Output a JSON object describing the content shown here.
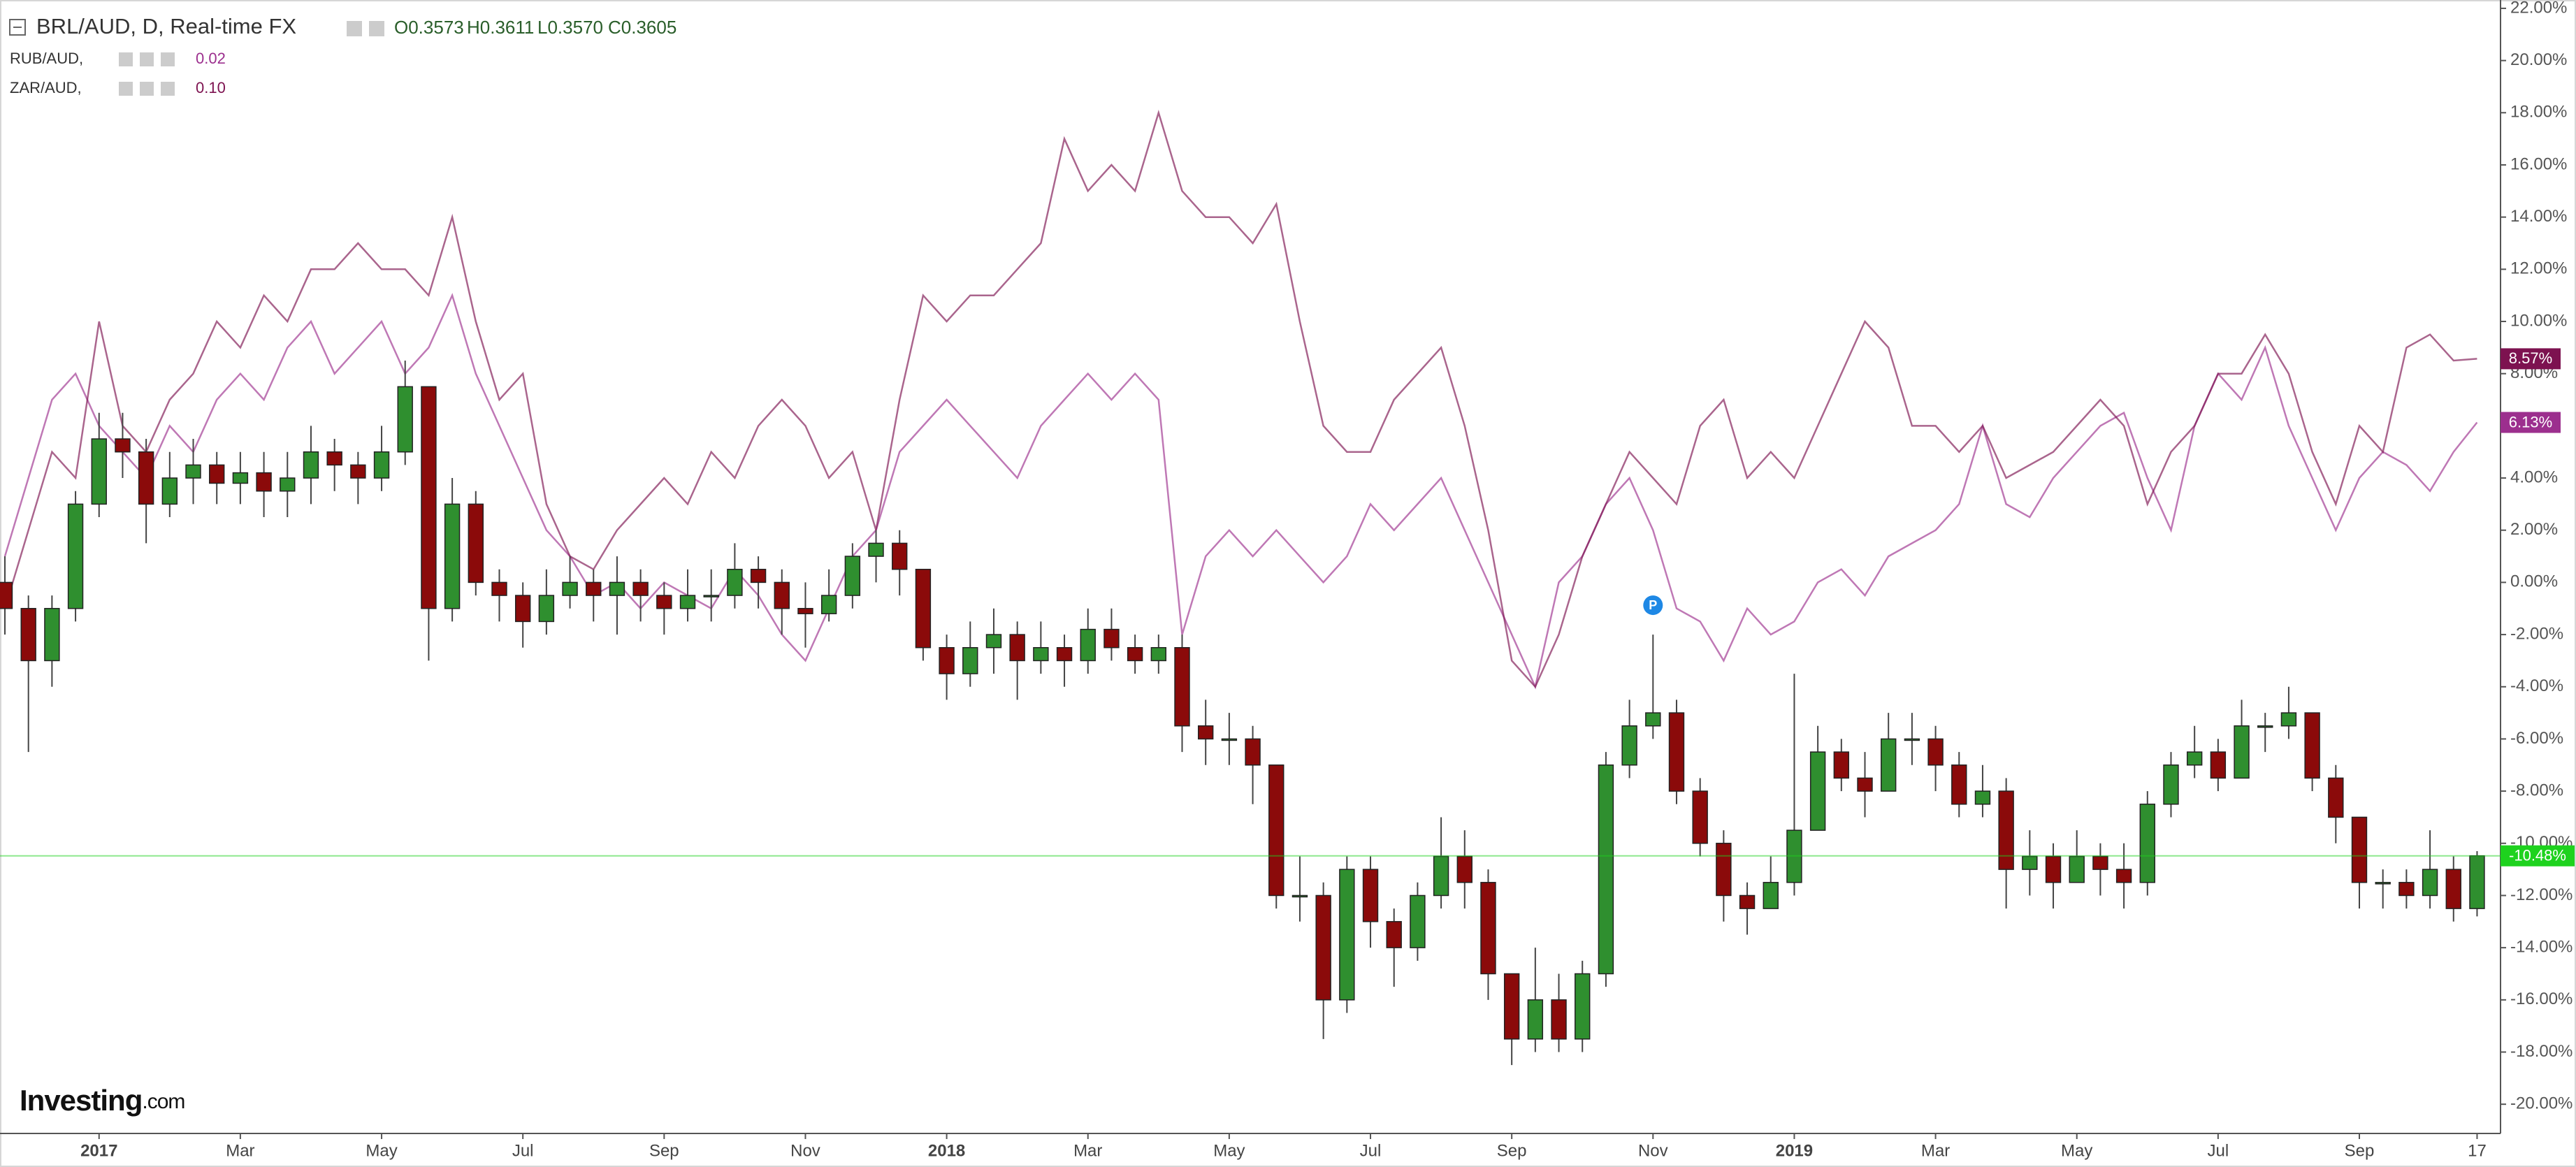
{
  "chart_data": {
    "type": "candlestick",
    "title": "BRL/AUD, D, Real-time FX",
    "ohlc_text": [
      "O0.3573",
      "H0.3611",
      "L0.3570",
      "C0.3605"
    ],
    "logo": "Investing",
    "logo_suffix": ".com",
    "marker_label": "P",
    "last_label": "-10.48%",
    "up_color": "#2f8f2f",
    "down_color": "#8b0a0a",
    "last_color": "#1ed21e",
    "grid": false,
    "categories": [
      null,
      null,
      null,
      null,
      "2017",
      null,
      null,
      null,
      null,
      null,
      "Mar",
      null,
      null,
      null,
      null,
      null,
      "May",
      null,
      null,
      null,
      null,
      null,
      "Jul",
      null,
      null,
      null,
      null,
      null,
      "Sep",
      null,
      null,
      null,
      null,
      null,
      "Nov",
      null,
      null,
      null,
      null,
      null,
      "2018",
      null,
      null,
      null,
      null,
      null,
      "Mar",
      null,
      null,
      null,
      null,
      null,
      "May",
      null,
      null,
      null,
      null,
      null,
      "Jul",
      null,
      null,
      null,
      null,
      null,
      "Sep",
      null,
      null,
      null,
      null,
      null,
      "Nov",
      null,
      null,
      null,
      null,
      null,
      "2019",
      null,
      null,
      null,
      null,
      null,
      "Mar",
      null,
      null,
      null,
      null,
      null,
      "May",
      null,
      null,
      null,
      null,
      null,
      "Jul",
      null,
      null,
      null,
      null,
      null,
      "Sep",
      null,
      null,
      null,
      null,
      "17"
    ],
    "open": [
      0,
      -1,
      -3,
      -1,
      3,
      5.5,
      5,
      3,
      4,
      4.5,
      3.8,
      4.2,
      3.5,
      4,
      5,
      4.5,
      4,
      5,
      7.5,
      -1,
      3,
      0,
      -0.5,
      -1.5,
      -0.5,
      0,
      -0.5,
      0,
      -0.5,
      -1,
      -0.5,
      -0.5,
      0.5,
      0,
      -1,
      -1.2,
      -0.5,
      1,
      1.5,
      0.5,
      -2.5,
      -3.5,
      -2.5,
      -2,
      -3,
      -2.5,
      -3,
      -1.8,
      -2.5,
      -3,
      -2.5,
      -5.5,
      -6,
      -6,
      -7,
      -12,
      -12,
      -16,
      -11,
      -13,
      -14,
      -12,
      -10.5,
      -11.5,
      -15,
      -17.5,
      -16,
      -17.5,
      -15,
      -7,
      -5.5,
      -5,
      -8,
      -10,
      -12,
      -12.5,
      -11.5,
      -9.5,
      -6.5,
      -7.5,
      -8,
      -6,
      -6,
      -7,
      -8.5,
      -8,
      -11,
      -10.5,
      -11.5,
      -10.5,
      -11,
      -11.5,
      -8.5,
      -7,
      -6.5,
      -7.5,
      -5.5,
      -5.5,
      -5,
      -7.5,
      -9,
      -11.5,
      -11.5,
      -12,
      -11,
      -12.5
    ],
    "high": [
      1,
      -0.5,
      -0.5,
      3.5,
      6.5,
      6.5,
      5.5,
      5,
      5.5,
      5,
      5,
      5,
      5,
      6,
      5.5,
      5,
      6,
      8.5,
      7.5,
      4,
      3.5,
      0.5,
      0,
      0.5,
      1,
      0.5,
      1,
      0.5,
      0,
      0.5,
      0.5,
      1.5,
      1,
      0.5,
      0,
      0.5,
      1.5,
      2,
      2,
      0.5,
      -2,
      -1.5,
      -1,
      -1.5,
      -1.5,
      -2,
      -1,
      -1,
      -2,
      -2,
      -2,
      -4.5,
      -5,
      -5.5,
      -7,
      -10.5,
      -11.5,
      -10.5,
      -10.5,
      -12.5,
      -11.5,
      -9,
      -9.5,
      -11,
      -15,
      -14,
      -15,
      -14.5,
      -6.5,
      -4.5,
      -2,
      -4.5,
      -7.5,
      -9.5,
      -11.5,
      -10.5,
      -3.5,
      -5.5,
      -6,
      -6.5,
      -5,
      -5,
      -5.5,
      -6.5,
      -7,
      -7.5,
      -9.5,
      -10,
      -9.5,
      -10,
      -10,
      -8,
      -6.5,
      -5.5,
      -6,
      -4.5,
      -5,
      -4,
      -5,
      -7,
      -9,
      -11,
      -11,
      -9.5,
      -10.5,
      -10.3
    ],
    "low": [
      -2,
      -6.5,
      -4,
      -1.5,
      2.5,
      4,
      1.5,
      2.5,
      3,
      3,
      3,
      2.5,
      2.5,
      3,
      3.5,
      3,
      3.5,
      4.5,
      -3,
      -1.5,
      -0.5,
      -1.5,
      -2.5,
      -2,
      -1,
      -1.5,
      -2,
      -1.5,
      -2,
      -1.5,
      -1.5,
      -1,
      -1,
      -2,
      -2.5,
      -1.5,
      -1,
      0,
      -0.5,
      -3,
      -4.5,
      -4,
      -3.5,
      -4.5,
      -3.5,
      -4,
      -3.5,
      -3,
      -3.5,
      -3.5,
      -6.5,
      -7,
      -7,
      -8.5,
      -12.5,
      -13,
      -17.5,
      -16.5,
      -14,
      -15.5,
      -14.5,
      -12.5,
      -12.5,
      -16,
      -18.5,
      -18,
      -18,
      -18,
      -15.5,
      -7.5,
      -6,
      -8.5,
      -10.5,
      -13,
      -13.5,
      -12.5,
      -12,
      -9.5,
      -8,
      -9,
      -8,
      -7,
      -8,
      -9,
      -9,
      -12.5,
      -12,
      -12.5,
      -11.5,
      -12,
      -12.5,
      -12,
      -9,
      -7.5,
      -8,
      -7.5,
      -6.5,
      -6,
      -8,
      -10,
      -12.5,
      -12.5,
      -12.5,
      -12.5,
      -13,
      -12.8
    ],
    "close": [
      -1,
      -3,
      -1,
      3,
      5.5,
      5,
      3,
      4,
      4.5,
      3.8,
      4.2,
      3.5,
      4,
      5,
      4.5,
      4,
      5,
      7.5,
      -1,
      3,
      0,
      -0.5,
      -1.5,
      -0.5,
      0,
      -0.5,
      0,
      -0.5,
      -1,
      -0.5,
      -0.5,
      0.5,
      0,
      -1,
      -1.2,
      -0.5,
      1,
      1.5,
      0.5,
      -2.5,
      -3.5,
      -2.5,
      -2,
      -3,
      -2.5,
      -3,
      -1.8,
      -2.5,
      -3,
      -2.5,
      -5.5,
      -6,
      -6,
      -7,
      -12,
      -12,
      -16,
      -11,
      -13,
      -14,
      -12,
      -10.5,
      -11.5,
      -15,
      -17.5,
      -16,
      -17.5,
      -15,
      -7,
      -5.5,
      -5,
      -8,
      -10,
      -12,
      -12.5,
      -11.5,
      -9.5,
      -6.5,
      -7.5,
      -8,
      -6,
      -6,
      -7,
      -8.5,
      -8,
      -11,
      -10.5,
      -11.5,
      -10.5,
      -11,
      -11.5,
      -8.5,
      -7,
      -6.5,
      -7.5,
      -5.5,
      -5.5,
      -5,
      -7.5,
      -9,
      -11.5,
      -11.5,
      -12,
      -11,
      -12.5,
      -10.48
    ],
    "series": [
      {
        "name": "RUB/AUD,",
        "legend_value": "0.02",
        "color": "#9c2f8e",
        "end_label": "6.13%",
        "values": [
          1,
          4,
          7,
          8,
          6,
          5,
          4,
          6,
          5,
          7,
          8,
          7,
          9,
          10,
          8,
          9,
          10,
          8,
          9,
          11,
          8,
          6,
          4,
          2,
          1,
          -0.5,
          0,
          -1,
          0,
          -0.5,
          -1,
          0.5,
          -0.5,
          -2,
          -3,
          -1,
          1,
          2,
          5,
          6,
          7,
          6,
          5,
          4,
          6,
          7,
          8,
          7,
          8,
          7,
          -2,
          1,
          2,
          1,
          2,
          1,
          0,
          1,
          3,
          2,
          3,
          4,
          2,
          0,
          -2,
          -4,
          0,
          1,
          3,
          4,
          2,
          -1,
          -1.5,
          -3,
          -1,
          -2,
          -1.5,
          0,
          0.5,
          -0.5,
          1,
          1.5,
          2,
          3,
          6,
          3,
          2.5,
          4,
          5,
          6,
          6.5,
          4,
          2,
          6,
          8,
          7,
          9,
          6,
          4,
          2,
          4,
          5,
          4.5,
          3.5,
          5,
          6.13
        ]
      },
      {
        "name": "ZAR/AUD,",
        "legend_value": "0.10",
        "color": "#7d1250",
        "end_label": "8.57%",
        "values": [
          -1,
          2,
          5,
          4,
          10,
          6,
          5,
          7,
          8,
          10,
          9,
          11,
          10,
          12,
          12,
          13,
          12,
          12,
          11,
          14,
          10,
          7,
          8,
          3,
          1,
          0.5,
          2,
          3,
          4,
          3,
          5,
          4,
          6,
          7,
          6,
          4,
          5,
          2,
          7,
          11,
          10,
          11,
          11,
          12,
          13,
          17,
          15,
          16,
          15,
          18,
          15,
          14,
          14,
          13,
          14.5,
          10,
          6,
          5,
          5,
          7,
          8,
          9,
          6,
          2,
          -3,
          -4,
          -2,
          1,
          3,
          5,
          4,
          3,
          6,
          7,
          4,
          5,
          4,
          6,
          8,
          10,
          9,
          6,
          6,
          5,
          6,
          4,
          4.5,
          5,
          6,
          7,
          6,
          3,
          5,
          6,
          8,
          8,
          9.5,
          8,
          5,
          3,
          6,
          5,
          9,
          9.5,
          8.5,
          8.57
        ]
      }
    ],
    "ylim": [
      -21.12,
      22.32
    ],
    "yticks": [
      {
        "value": 22,
        "label": "22.00%"
      },
      {
        "value": 20,
        "label": "20.00%"
      },
      {
        "value": 18,
        "label": "18.00%"
      },
      {
        "value": 16,
        "label": "16.00%"
      },
      {
        "value": 14,
        "label": "14.00%"
      },
      {
        "value": 12,
        "label": "12.00%"
      },
      {
        "value": 10,
        "label": "10.00%"
      },
      {
        "value": 8,
        "label": "8.00%"
      },
      {
        "value": 6,
        "label": "6.00%"
      },
      {
        "value": 4,
        "label": "4.00%"
      },
      {
        "value": 2,
        "label": "2.00%"
      },
      {
        "value": 0,
        "label": "0.00%"
      },
      {
        "value": -2,
        "label": "-2.00%"
      },
      {
        "value": -4,
        "label": "-4.00%"
      },
      {
        "value": -6,
        "label": "-6.00%"
      },
      {
        "value": -8,
        "label": "-8.00%"
      },
      {
        "value": -10,
        "label": "-10.00%"
      },
      {
        "value": -12,
        "label": "-12.00%"
      },
      {
        "value": -14,
        "label": "-14.00%"
      },
      {
        "value": -16,
        "label": "-16.00%"
      },
      {
        "value": -18,
        "label": "-18.00%"
      },
      {
        "value": -20,
        "label": "-20.00%"
      }
    ]
  }
}
